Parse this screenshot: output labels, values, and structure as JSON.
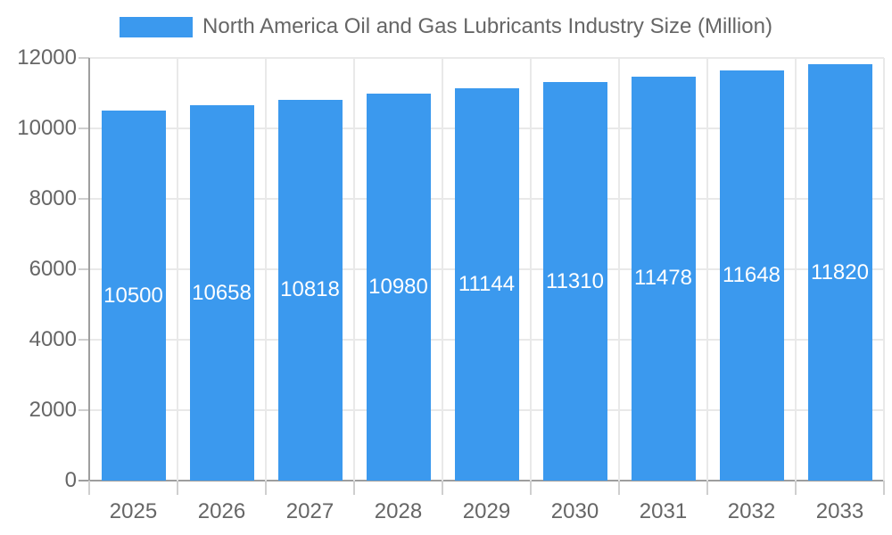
{
  "chart_data": {
    "type": "bar",
    "title": "North America Oil and Gas Lubricants Industry Size (Million)",
    "categories": [
      "2025",
      "2026",
      "2027",
      "2028",
      "2029",
      "2030",
      "2031",
      "2032",
      "2033"
    ],
    "values": [
      10500,
      10658,
      10818,
      10980,
      11144,
      11310,
      11478,
      11648,
      11820
    ],
    "xlabel": "",
    "ylabel": "",
    "ylim": [
      0,
      12000
    ],
    "ytick_step": 2000,
    "ytick_labels": [
      "0",
      "2000",
      "4000",
      "6000",
      "8000",
      "10000",
      "12000"
    ],
    "legend_position": "top",
    "grid": true,
    "value_labels": "inside-center",
    "colors": {
      "bar": "#3b99ee",
      "bar_label_text": "#ffffff",
      "axis_text": "#666666",
      "gridline": "#e9e9e9",
      "axis_line": "#9e9e9e",
      "tick": "#cfcfcf",
      "background": "#ffffff"
    }
  }
}
